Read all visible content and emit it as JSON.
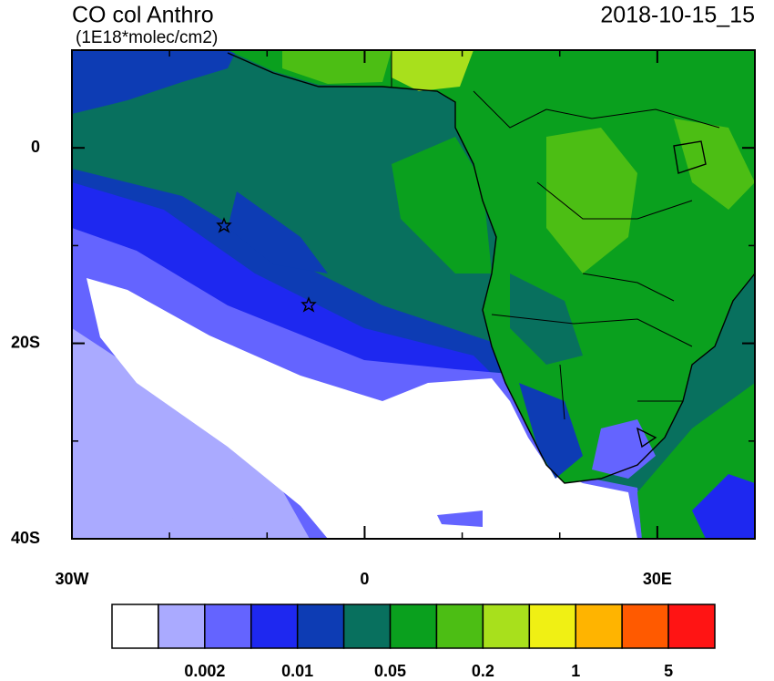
{
  "title": "CO col Anthro",
  "units": "(1E18*molec/cm2)",
  "timestamp": "2018-10-15_15",
  "map": {
    "lon_range": [
      -30,
      40
    ],
    "lat_range": [
      -40,
      10
    ],
    "lon_ticks": [
      {
        "value": -30,
        "label": "30W"
      },
      {
        "value": 0,
        "label": "0"
      },
      {
        "value": 30,
        "label": "30E"
      }
    ],
    "lat_ticks": [
      {
        "value": 0,
        "label": "0"
      },
      {
        "value": -20,
        "label": "20S"
      },
      {
        "value": -40,
        "label": "40S"
      }
    ]
  },
  "colorbar": {
    "colors": [
      "#ffffff",
      "#aaaaff",
      "#6464ff",
      "#1e28f0",
      "#0d3cb4",
      "#08705e",
      "#0aa01e",
      "#4cbe14",
      "#a8e01c",
      "#f0f014",
      "#ffb400",
      "#ff5a00",
      "#ff1414"
    ],
    "levels": [
      0.002,
      0.01,
      0.05,
      0.2,
      1,
      5
    ]
  }
}
